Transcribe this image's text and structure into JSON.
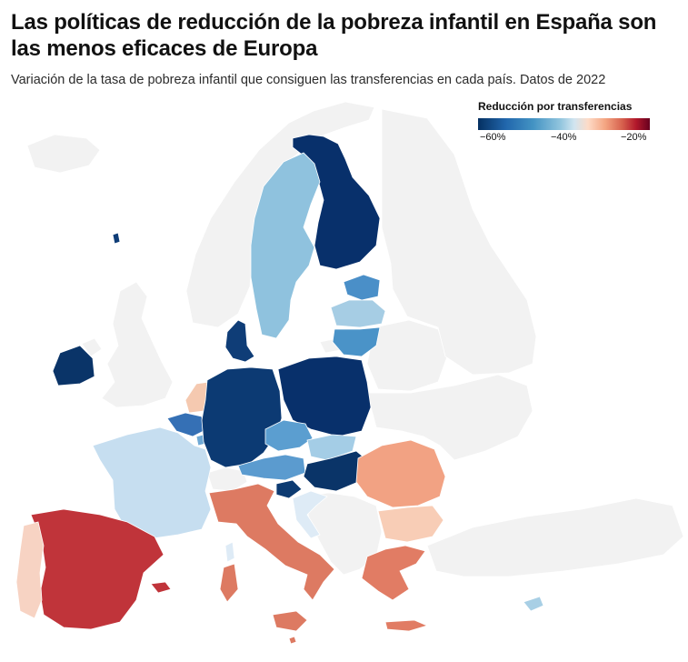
{
  "header": {
    "title": "Las políticas de reducción de la pobreza infantil en España son las menos eficaces de Europa",
    "subtitle": "Variación de la tasa de pobreza infantil que consiguen las transferencias en cada país. Datos de 2022"
  },
  "legend": {
    "title": "Reducción por transferencias",
    "ticks": [
      "−60%",
      "−40%",
      "−20%"
    ],
    "colors": [
      "#053061",
      "#2166ac",
      "#4393c3",
      "#92c5de",
      "#d1e5f0",
      "#fddbc7",
      "#f4a582",
      "#d6604d",
      "#b2182b",
      "#67001f"
    ]
  },
  "map_colors": {
    "no_data": "#f2f2f2",
    "finland": "#08306b",
    "sweden": "#8fc2de",
    "estonia": "#4a8fc8",
    "latvia": "#a6cde4",
    "lithuania": "#4a93c8",
    "denmark": "#0f3d77",
    "ireland": "#0a3468",
    "netherlands": "#f5c9b0",
    "belgium": "#3570b5",
    "luxembourg": "#6fa9d5",
    "france": "#c6def0",
    "germany": "#0c3a73",
    "poland": "#08306b",
    "czechia": "#5b9ed0",
    "slovakia": "#a4cde6",
    "austria": "#5b9bcf",
    "hungary": "#0a3468",
    "slovenia": "#0d3b72",
    "croatia": "#deebf6",
    "romania": "#f2a283",
    "bulgaria": "#f8cdb6",
    "italy": "#dd7a62",
    "greece": "#e17c64",
    "spain": "#c0343a",
    "portugal": "#f7d3c3",
    "malta": "#dd7a62",
    "cyprus": "#a8cfe5"
  }
}
